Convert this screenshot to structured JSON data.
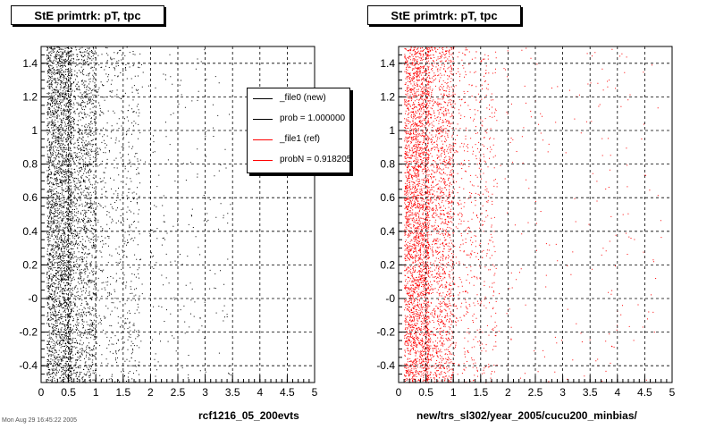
{
  "panels": [
    {
      "title": "StE primtrk: pT, tpc",
      "file_label": "rcf1216_05_200evts",
      "color": "#000000",
      "seed": 7
    },
    {
      "title": "StE primtrk: pT, tpc",
      "file_label": "new/trs_sl302/year_2005/cucu200_minbias/",
      "color": "#ff0000",
      "seed": 19
    }
  ],
  "legend": {
    "entries": [
      {
        "label": "_file0 (new)",
        "color": "#000000"
      },
      {
        "label": "prob = 1.000000",
        "color": "#000000"
      },
      {
        "label": "_file1 (ref)",
        "color": "#ff0000"
      },
      {
        "label": "probN = 0.918205",
        "color": "#ff0000"
      }
    ]
  },
  "footer_stamp": "Mon Aug 29 16:45:22 2005",
  "chart_data": [
    {
      "type": "scatter",
      "title": "StE primtrk: pT, tpc",
      "xlabel": "rcf1216_05_200evts",
      "ylabel": "",
      "xlim": [
        0,
        5
      ],
      "ylim": [
        -0.5,
        1.5
      ],
      "x_ticks": [
        "0",
        "0.5",
        "1",
        "1.5",
        "2",
        "2.5",
        "3",
        "3.5",
        "4",
        "4.5",
        "5"
      ],
      "y_ticks": [
        "-0.4",
        "-0.2",
        "-0",
        "0.2",
        "0.4",
        "0.6",
        "0.8",
        "1",
        "1.2",
        "1.4"
      ],
      "grid": true,
      "series": [
        {
          "name": "_file0 (new)",
          "color": "#000000",
          "distribution": "dense band at x 0.1-0.7, thinning out toward x 3.5, uniform in y"
        }
      ]
    },
    {
      "type": "scatter",
      "title": "StE primtrk: pT, tpc",
      "xlabel": "new/trs_sl302/year_2005/cucu200_minbias/",
      "ylabel": "",
      "xlim": [
        0,
        5
      ],
      "ylim": [
        -0.5,
        1.5
      ],
      "x_ticks": [
        "0",
        "0.5",
        "1",
        "1.5",
        "2",
        "2.5",
        "3",
        "3.5",
        "4",
        "4.5",
        "5"
      ],
      "y_ticks": [
        "-0.4",
        "-0.2",
        "-0",
        "0.2",
        "0.4",
        "0.6",
        "0.8",
        "1",
        "1.2",
        "1.4"
      ],
      "grid": true,
      "series": [
        {
          "name": "_file1 (ref)",
          "color": "#ff0000",
          "distribution": "dense band at x 0.1-0.7, thinning out toward x 4.8, uniform in y"
        }
      ]
    }
  ]
}
